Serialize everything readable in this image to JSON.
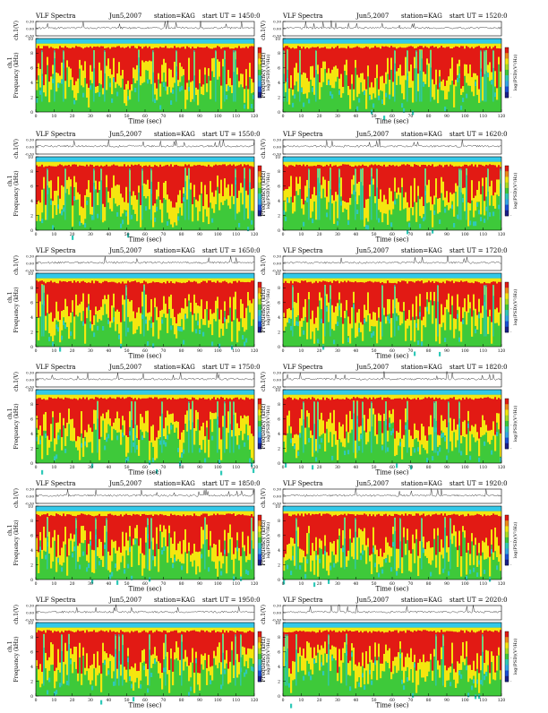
{
  "page": {
    "panel_header": {
      "title": "VLF Spectra",
      "date_left": "Jun5,2007",
      "date_right": "Jun5,2007",
      "station": "station=KAG",
      "start_prefix": "start UT ="
    },
    "labels": {
      "ch_label": "ch.1(V)",
      "freq_label_left": "Frequency (kHz)",
      "freq_label_right": "Frequency (kHz)",
      "ch1_prefix": "ch.1",
      "colorbar_label": "log(PSD)(V²/Hz)",
      "time_label": "Time (sec)"
    },
    "colors": {
      "background": "#ffffff",
      "axis": "#000000",
      "band_cyan": "#33c8e8",
      "high_red": "#e21a14",
      "mid_yellow": "#f5e60f",
      "low_green": "#3ec93a",
      "green_cyan": "#2fc9b8"
    }
  },
  "chart_data": [
    {
      "type": "heatmap",
      "title": "VLF Spectra",
      "date": "Jun5,2007",
      "station": "station=KAG",
      "start_ut": "1450:0",
      "xlabel": "Time (sec)",
      "ylabel": "Frequency (kHz)",
      "xlim": [
        0,
        120
      ],
      "ylim": [
        0,
        10
      ],
      "x_ticks": [
        0,
        10,
        20,
        30,
        40,
        50,
        60,
        70,
        80,
        90,
        100,
        110,
        120
      ],
      "y_ticks": [
        0,
        2,
        4,
        6,
        8,
        10
      ],
      "trace_ylabel": "ch.1(V)",
      "trace_ylim": [
        -0.3,
        0.3
      ],
      "trace_ticks": [
        "0.30",
        "0.00",
        "-0.30"
      ],
      "colorbar_label": "log(PSD)(V²/Hz)",
      "colorbar_ticks": [
        "",
        "-",
        "-"
      ]
    },
    {
      "type": "heatmap",
      "title": "VLF Spectra",
      "date": "Jun5,2007",
      "station": "station=KAG",
      "start_ut": "1520:0",
      "xlabel": "Time (sec)",
      "ylabel": "Frequency (kHz)",
      "xlim": [
        0,
        120
      ],
      "ylim": [
        0,
        10
      ],
      "x_ticks": [
        0,
        10,
        20,
        30,
        40,
        50,
        60,
        70,
        80,
        90,
        100,
        110,
        120
      ],
      "y_ticks": [
        0,
        2,
        4,
        6,
        8,
        10
      ],
      "trace_ylabel": "ch.1(V)",
      "trace_ylim": [
        -0.3,
        0.3
      ],
      "trace_ticks": [
        "0.30",
        "0.00",
        "-0.30"
      ],
      "colorbar_label": "log(PSD)(V²/Hz)",
      "colorbar_ticks": [
        "",
        "-",
        "-"
      ]
    },
    {
      "type": "heatmap",
      "title": "VLF Spectra",
      "date": "Jun5,2007",
      "station": "station=KAG",
      "start_ut": "1550:0",
      "xlabel": "Time (sec)",
      "ylabel": "Frequency (kHz)",
      "xlim": [
        0,
        120
      ],
      "ylim": [
        0,
        10
      ],
      "x_ticks": [
        0,
        10,
        20,
        30,
        40,
        50,
        60,
        70,
        80,
        90,
        100,
        110,
        120
      ],
      "y_ticks": [
        0,
        2,
        4,
        6,
        8,
        10
      ],
      "trace_ylabel": "ch.1(V)",
      "trace_ylim": [
        -0.3,
        0.3
      ],
      "trace_ticks": [
        "0.30",
        "0.00",
        "-0.30"
      ],
      "colorbar_label": "log(PSD)(V²/Hz)",
      "colorbar_ticks": [
        "",
        "-",
        "-"
      ]
    },
    {
      "type": "heatmap",
      "title": "VLF Spectra",
      "date": "Jun5,2007",
      "station": "station=KAG",
      "start_ut": "1620:0",
      "xlabel": "Time (sec)",
      "ylabel": "Frequency (kHz)",
      "xlim": [
        0,
        120
      ],
      "ylim": [
        0,
        10
      ],
      "x_ticks": [
        0,
        10,
        20,
        30,
        40,
        50,
        60,
        70,
        80,
        90,
        100,
        110,
        120
      ],
      "y_ticks": [
        0,
        2,
        4,
        6,
        8,
        10
      ],
      "trace_ylabel": "ch.1(V)",
      "trace_ylim": [
        -0.3,
        0.3
      ],
      "trace_ticks": [
        "0.30",
        "0.00",
        "-0.30"
      ],
      "colorbar_label": "log(PSD)(V²/Hz)",
      "colorbar_ticks": [
        "",
        "-",
        "-"
      ]
    },
    {
      "type": "heatmap",
      "title": "VLF Spectra",
      "date": "Jun5,2007",
      "station": "station=KAG",
      "start_ut": "1650:0",
      "xlabel": "Time (sec)",
      "ylabel": "Frequency (kHz)",
      "xlim": [
        0,
        120
      ],
      "ylim": [
        0,
        10
      ],
      "x_ticks": [
        0,
        10,
        20,
        30,
        40,
        50,
        60,
        70,
        80,
        90,
        100,
        110,
        120
      ],
      "y_ticks": [
        0,
        2,
        4,
        6,
        8,
        10
      ],
      "trace_ylabel": "ch.1(V)",
      "trace_ylim": [
        -0.3,
        0.3
      ],
      "trace_ticks": [
        "0.30",
        "0.00",
        "-0.30"
      ],
      "colorbar_label": "log(PSD)(V²/Hz)",
      "colorbar_ticks": [
        "",
        "-",
        "-"
      ]
    },
    {
      "type": "heatmap",
      "title": "VLF Spectra",
      "date": "Jun5,2007",
      "station": "station=KAG",
      "start_ut": "1720:0",
      "xlabel": "Time (sec)",
      "ylabel": "Frequency (kHz)",
      "xlim": [
        0,
        120
      ],
      "ylim": [
        0,
        10
      ],
      "x_ticks": [
        0,
        10,
        20,
        30,
        40,
        50,
        60,
        70,
        80,
        90,
        100,
        110,
        120
      ],
      "y_ticks": [
        0,
        2,
        4,
        6,
        8,
        10
      ],
      "trace_ylabel": "ch.1(V)",
      "trace_ylim": [
        -0.3,
        0.3
      ],
      "trace_ticks": [
        "0.30",
        "0.00",
        "-0.30"
      ],
      "colorbar_label": "log(PSD)(V²/Hz)",
      "colorbar_ticks": [
        "",
        "-",
        "-"
      ]
    },
    {
      "type": "heatmap",
      "title": "VLF Spectra",
      "date": "Jun5,2007",
      "station": "station=KAG",
      "start_ut": "1750:0",
      "xlabel": "Time (sec)",
      "ylabel": "Frequency (kHz)",
      "xlim": [
        0,
        120
      ],
      "ylim": [
        0,
        10
      ],
      "x_ticks": [
        0,
        10,
        20,
        30,
        40,
        50,
        60,
        70,
        80,
        90,
        100,
        110,
        120
      ],
      "y_ticks": [
        0,
        2,
        4,
        6,
        8,
        10
      ],
      "trace_ylabel": "ch.1(V)",
      "trace_ylim": [
        -0.3,
        0.3
      ],
      "trace_ticks": [
        "0.30",
        "0.00",
        "-0.30"
      ],
      "colorbar_label": "log(PSD)(V²/Hz)",
      "colorbar_ticks": [
        "",
        "-",
        "-"
      ]
    },
    {
      "type": "heatmap",
      "title": "VLF Spectra",
      "date": "Jun5,2007",
      "station": "station=KAG",
      "start_ut": "1820:0",
      "xlabel": "Time (sec)",
      "ylabel": "Frequency (kHz)",
      "xlim": [
        0,
        120
      ],
      "ylim": [
        0,
        10
      ],
      "x_ticks": [
        0,
        10,
        20,
        30,
        40,
        50,
        60,
        70,
        80,
        90,
        100,
        110,
        120
      ],
      "y_ticks": [
        0,
        2,
        4,
        6,
        8,
        10
      ],
      "trace_ylabel": "ch.1(V)",
      "trace_ylim": [
        -0.3,
        0.3
      ],
      "trace_ticks": [
        "0.30",
        "0.00",
        "-0.30"
      ],
      "colorbar_label": "log(PSD)(V²/Hz)",
      "colorbar_ticks": [
        "",
        "-",
        "-"
      ]
    },
    {
      "type": "heatmap",
      "title": "VLF Spectra",
      "date": "Jun5,2007",
      "station": "station=KAG",
      "start_ut": "1850:0",
      "xlabel": "Time (sec)",
      "ylabel": "Frequency (kHz)",
      "xlim": [
        0,
        120
      ],
      "ylim": [
        0,
        10
      ],
      "x_ticks": [
        0,
        10,
        20,
        30,
        40,
        50,
        60,
        70,
        80,
        90,
        100,
        110,
        120
      ],
      "y_ticks": [
        0,
        2,
        4,
        6,
        8,
        10
      ],
      "trace_ylabel": "ch.1(V)",
      "trace_ylim": [
        -0.3,
        0.3
      ],
      "trace_ticks": [
        "0.30",
        "0.00",
        "-0.30"
      ],
      "colorbar_label": "log(PSD)(V²/Hz)",
      "colorbar_ticks": [
        "",
        "-",
        "-"
      ]
    },
    {
      "type": "heatmap",
      "title": "VLF Spectra",
      "date": "Jun5,2007",
      "station": "station=KAG",
      "start_ut": "1920:0",
      "xlabel": "Time (sec)",
      "ylabel": "Frequency (kHz)",
      "xlim": [
        0,
        120
      ],
      "ylim": [
        0,
        10
      ],
      "x_ticks": [
        0,
        10,
        20,
        30,
        40,
        50,
        60,
        70,
        80,
        90,
        100,
        110,
        120
      ],
      "y_ticks": [
        0,
        2,
        4,
        6,
        8,
        10
      ],
      "trace_ylabel": "ch.1(V)",
      "trace_ylim": [
        -0.3,
        0.3
      ],
      "trace_ticks": [
        "0.30",
        "0.00",
        "-0.30"
      ],
      "colorbar_label": "log(PSD)(V²/Hz)",
      "colorbar_ticks": [
        "",
        "-",
        "-"
      ]
    },
    {
      "type": "heatmap",
      "title": "VLF Spectra",
      "date": "Jun5,2007",
      "station": "station=KAG",
      "start_ut": "1950:0",
      "xlabel": "Time (sec)",
      "ylabel": "Frequency (kHz)",
      "xlim": [
        0,
        120
      ],
      "ylim": [
        0,
        10
      ],
      "x_ticks": [
        0,
        10,
        20,
        30,
        40,
        50,
        60,
        70,
        80,
        90,
        100,
        110,
        120
      ],
      "y_ticks": [
        0,
        2,
        4,
        6,
        8,
        10
      ],
      "trace_ylabel": "ch.1(V)",
      "trace_ylim": [
        -0.3,
        0.3
      ],
      "trace_ticks": [
        "0.30",
        "0.00",
        "-0.30"
      ],
      "colorbar_label": "log(PSD)(V²/Hz)",
      "colorbar_ticks": [
        "",
        "-",
        "-"
      ]
    },
    {
      "type": "heatmap",
      "title": "VLF Spectra",
      "date": "Jun5,2007",
      "station": "station=KAG",
      "start_ut": "2020:0",
      "xlabel": "Time (sec)",
      "ylabel": "Frequency (kHz)",
      "xlim": [
        0,
        120
      ],
      "ylim": [
        0,
        10
      ],
      "x_ticks": [
        0,
        10,
        20,
        30,
        40,
        50,
        60,
        70,
        80,
        90,
        100,
        110,
        120
      ],
      "y_ticks": [
        0,
        2,
        4,
        6,
        8,
        10
      ],
      "trace_ylabel": "ch.1(V)",
      "trace_ylim": [
        -0.3,
        0.3
      ],
      "trace_ticks": [
        "0.30",
        "0.00",
        "-0.30"
      ],
      "colorbar_label": "log(PSD)(V²/Hz)",
      "colorbar_ticks": [
        "",
        "-",
        "-"
      ]
    }
  ]
}
